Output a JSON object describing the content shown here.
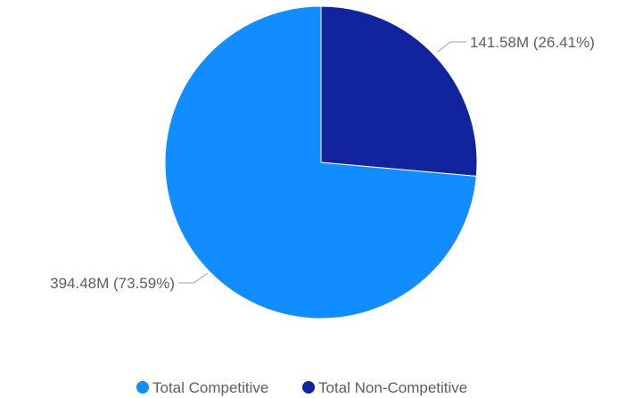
{
  "chart_data": {
    "type": "pie",
    "title": "",
    "slices": [
      {
        "name": "Total Competitive",
        "value": 394.48,
        "percent": 73.59,
        "label": "394.48M (73.59%)",
        "color": "#118dff"
      },
      {
        "name": "Total Non-Competitive",
        "value": 141.58,
        "percent": 26.41,
        "label": "141.58M (26.41%)",
        "color": "#12239e"
      }
    ],
    "legend": {
      "position": "bottom-center",
      "items": [
        "Total Competitive",
        "Total Non-Competitive"
      ]
    }
  }
}
